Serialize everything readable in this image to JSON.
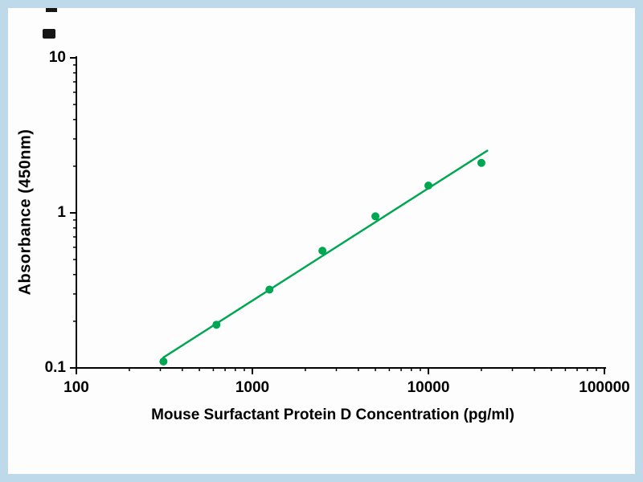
{
  "figure": {
    "frame_color": "#bdd9ea",
    "background_color": "#fdfdfd"
  },
  "icons": {
    "cropped_watermark_marks": "two small dark cropped glyph fragments, top-left"
  },
  "chart_data": {
    "type": "scatter",
    "subtype": "elisa-standard-curve-with-trendline",
    "title": "",
    "xlabel": "Mouse Surfactant Protein D Concentration (pg/ml)",
    "ylabel": "Absorbance (450nm)",
    "x_scale": "log",
    "y_scale": "log",
    "xlim": [
      100,
      100000
    ],
    "ylim": [
      0.1,
      10
    ],
    "x_tick_labels": [
      "100",
      "1000",
      "10000",
      "100000"
    ],
    "y_tick_labels": [
      "10",
      "1",
      "0.1"
    ],
    "grid": false,
    "legend": "none",
    "series_color": "#00a753",
    "axis_color": "#000000",
    "trendline": true,
    "trendline_extension_factor": 1.08,
    "points": [
      {
        "x": 312.5,
        "y": 0.11
      },
      {
        "x": 625,
        "y": 0.19
      },
      {
        "x": 1250,
        "y": 0.32
      },
      {
        "x": 2500,
        "y": 0.57
      },
      {
        "x": 5000,
        "y": 0.95
      },
      {
        "x": 10000,
        "y": 1.5
      },
      {
        "x": 20000,
        "y": 2.1
      }
    ]
  }
}
